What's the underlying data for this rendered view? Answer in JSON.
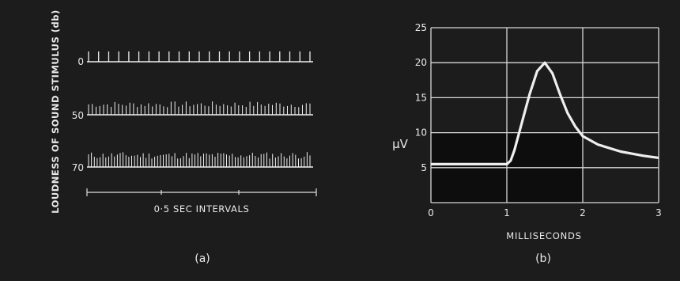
{
  "colors": {
    "background": "#1c1c1c",
    "trace": "#efefef",
    "grid": "#d8d8d8",
    "shaded_region": "#0c0c0c"
  },
  "chart_data": [
    {
      "panel_label": "(a)",
      "type": "line",
      "ylabel": "LOUDNESS OF SOUND STIMULUS (db)",
      "xlabel": "0·5 SEC INTERVALS",
      "series": [
        {
          "name": "0",
          "pattern": "sparse evenly spaced spikes",
          "spike_count": 23
        },
        {
          "name": "50",
          "pattern": "dense firing",
          "spike_count": 60
        },
        {
          "name": "70",
          "pattern": "very dense firing",
          "spike_count": 78
        }
      ]
    },
    {
      "panel_label": "(b)",
      "type": "line",
      "xlabel": "MILLISECONDS",
      "ylabel": "μV",
      "xlim": [
        0,
        3
      ],
      "ylim": [
        0,
        25
      ],
      "x_ticks": [
        "0",
        "1",
        "2",
        "3"
      ],
      "y_ticks": [
        "5",
        "10",
        "15",
        "20",
        "25"
      ],
      "grid": true,
      "shaded_region": {
        "x": [
          0,
          2
        ],
        "y": [
          0,
          10
        ]
      },
      "series": [
        {
          "x": [
            0,
            0.5,
            1.0,
            1.05,
            1.1,
            1.2,
            1.3,
            1.4,
            1.5,
            1.6,
            1.7,
            1.8,
            1.9,
            2.0,
            2.2,
            2.5,
            2.8,
            3.0
          ],
          "y": [
            5.5,
            5.5,
            5.5,
            6,
            7.5,
            11.5,
            15.5,
            18.8,
            20,
            18.5,
            15.5,
            12.8,
            10.9,
            9.5,
            8.3,
            7.3,
            6.7,
            6.4
          ]
        }
      ]
    }
  ]
}
